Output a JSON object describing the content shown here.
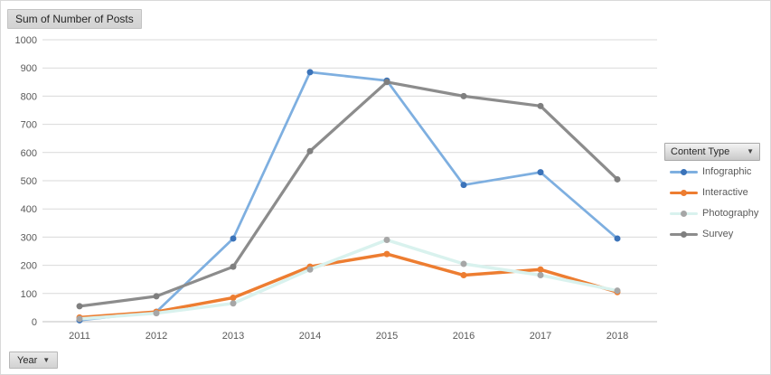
{
  "window": {
    "kind": "excel-pivot-line-chart"
  },
  "buttons": {
    "value_field": "Sum of Number of Posts",
    "axis_field": "Year",
    "legend_field": "Content Type",
    "dropdown_glyph": "▼"
  },
  "chart_data": {
    "type": "line",
    "title": "Sum of Number of Posts",
    "xlabel": "Year",
    "ylabel": "Sum of Number of Posts",
    "categories": [
      "2011",
      "2012",
      "2013",
      "2014",
      "2015",
      "2016",
      "2017",
      "2018"
    ],
    "series": [
      {
        "name": "Infographic",
        "values": [
          5,
          35,
          295,
          885,
          855,
          485,
          530,
          295
        ],
        "line_color": "#7eafe0",
        "marker_color": "#3b73b9",
        "line_width": 2.75
      },
      {
        "name": "Interactive",
        "values": [
          15,
          35,
          85,
          195,
          240,
          165,
          185,
          105
        ],
        "line_color": "#ed7d31",
        "marker_color": "#ed7d31",
        "line_width": 3.5
      },
      {
        "name": "Photography",
        "values": [
          10,
          30,
          65,
          185,
          290,
          205,
          165,
          110
        ],
        "line_color": "#d9f2ee",
        "marker_color": "#a6a6a6",
        "line_width": 3.5
      },
      {
        "name": "Survey",
        "values": [
          55,
          90,
          195,
          605,
          850,
          800,
          765,
          505
        ],
        "line_color": "#8c8c8c",
        "marker_color": "#7f7f7f",
        "line_width": 3.25
      }
    ],
    "ylim": [
      0,
      1000
    ],
    "ytick_step": 100,
    "grid": true,
    "legend_position": "right",
    "colors": {
      "gridline": "#d9d9d9",
      "axis_line": "#bfbfbf",
      "tick_label": "#595959"
    }
  }
}
